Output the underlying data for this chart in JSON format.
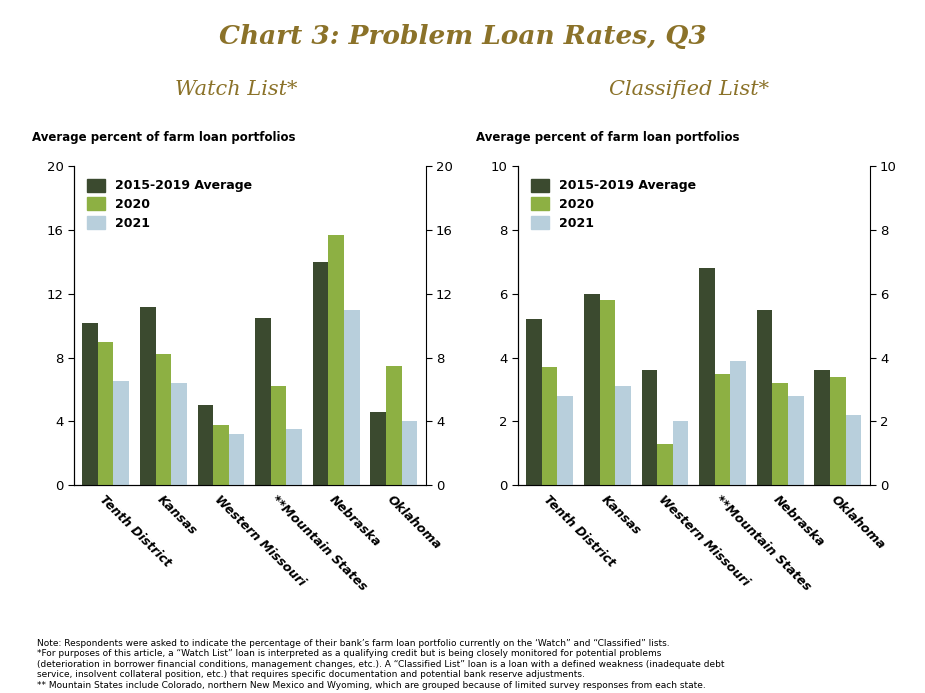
{
  "title": "Chart 3: Problem Loan Rates, Q3",
  "title_color": "#8B7229",
  "background_color": "#FFFFFF",
  "subtitle_left": "Watch List*",
  "subtitle_right": "Classified List*",
  "subtitle_color": "#8B7229",
  "categories": [
    "Tenth District",
    "Kansas",
    "Western Missouri",
    "**Mountain States",
    "Nebraska",
    "Oklahoma"
  ],
  "legend_labels": [
    "2015-2019 Average",
    "2020",
    "2021"
  ],
  "bar_colors": [
    "#3B4A2F",
    "#8DB043",
    "#B8CFDC"
  ],
  "watch_list": {
    "avg": [
      10.2,
      11.2,
      5.0,
      10.5,
      14.0,
      4.6
    ],
    "y2020": [
      9.0,
      8.2,
      3.8,
      6.2,
      15.7,
      7.5
    ],
    "y2021": [
      6.5,
      6.4,
      3.2,
      3.5,
      11.0,
      4.0
    ]
  },
  "classified_list": {
    "avg": [
      5.2,
      6.0,
      3.6,
      6.8,
      5.5,
      3.6
    ],
    "y2020": [
      3.7,
      5.8,
      1.3,
      3.5,
      3.2,
      3.4
    ],
    "y2021": [
      2.8,
      3.1,
      2.0,
      3.9,
      2.8,
      2.2
    ]
  },
  "watch_ylim": [
    0,
    20
  ],
  "watch_yticks": [
    0,
    4,
    8,
    12,
    16,
    20
  ],
  "classified_ylim": [
    0,
    10
  ],
  "classified_yticks": [
    0,
    2,
    4,
    6,
    8,
    10
  ],
  "ylabel": "Average percent of farm loan portfolios",
  "footnote_lines": [
    "Note: Respondents were asked to indicate the percentage of their bank’s farm loan portfolio currently on the ‘Watch” and “Classified” lists.",
    "*For purposes of this article, a “Watch List” loan is interpreted as a qualifying credit but is being closely monitored for potential problems",
    "(deterioration in borrower financial conditions, management changes, etc.). A “Classified List” loan is a loan with a defined weakness (inadequate debt",
    "service, insolvent collateral position, etc.) that requires specific documentation and potential bank reserve adjustments.",
    "** Mountain States include Colorado, northern New Mexico and Wyoming, which are grouped because of limited survey responses from each state."
  ]
}
